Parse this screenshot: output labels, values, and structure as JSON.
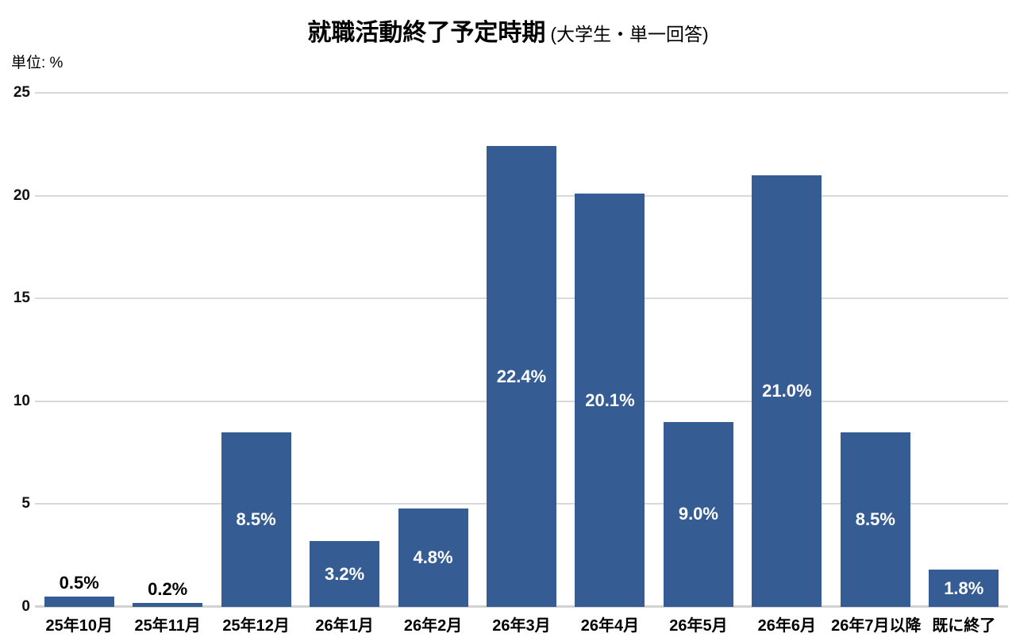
{
  "title": {
    "main": "就職活動終了予定時期",
    "sub": "(大学生・単一回答)"
  },
  "unit_label": "単位: %",
  "chart_data": {
    "type": "bar",
    "title": "就職活動終了予定時期 (大学生・単一回答)",
    "subtitle": "(大学生・単一回答)",
    "unit": "%",
    "ylabel": "単位: %",
    "xlabel": "",
    "categories": [
      "25年10月",
      "25年11月",
      "25年12月",
      "26年1月",
      "26年2月",
      "26年3月",
      "26年4月",
      "26年5月",
      "26年6月",
      "26年7月以降",
      "既に終了"
    ],
    "values": [
      0.5,
      0.2,
      8.5,
      3.2,
      4.8,
      22.4,
      20.1,
      9.0,
      21.0,
      8.5,
      1.8
    ],
    "data_labels": [
      "0.5%",
      "0.2%",
      "8.5%",
      "3.2%",
      "4.8%",
      "22.4%",
      "20.1%",
      "9.0%",
      "21.0%",
      "8.5%",
      "1.8%"
    ],
    "ylim": [
      0,
      25
    ],
    "yticks": [
      0,
      5,
      10,
      15,
      20,
      25
    ],
    "grid": true,
    "legend_position": "none",
    "bar_color": "#355D94",
    "gridline_color": "#D9D9D9",
    "label_color_inside": "#FFFFFF",
    "label_color_outside": "#000000"
  }
}
